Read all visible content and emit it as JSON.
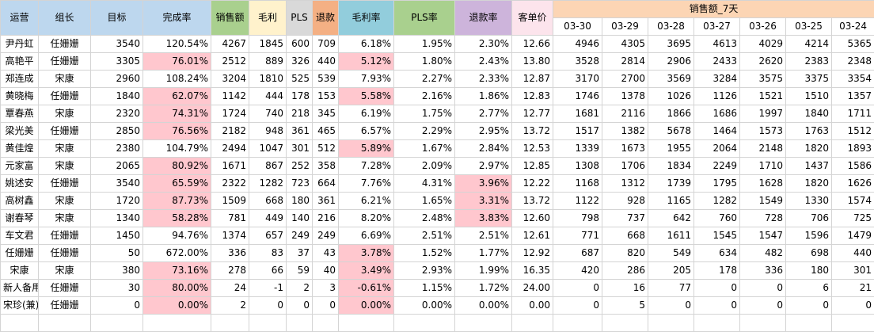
{
  "colors": {
    "yunying": "#bdd7ee",
    "zuzhang": "#bdd7ee",
    "mubiao": "#bdd7ee",
    "wanchenglv": "#bdd7ee",
    "xiaoshoue": "#a9d08e",
    "maoli": "#fff2cc",
    "pls": "#d9d9d9",
    "tuikuan": "#f4b084",
    "maolilv": "#92cddc",
    "plslv": "#a9d08e",
    "tuikuanlv": "#cdb4db",
    "kedanjia": "#fce4ec",
    "week": "#fcd5b4",
    "highlight": "#ffc7ce"
  },
  "header": {
    "columns": [
      "运营",
      "组长",
      "目标",
      "完成率",
      "销售额",
      "毛利",
      "PLS",
      "退款",
      "毛利率",
      "PLS率",
      "退款率",
      "客单价"
    ],
    "week_title": "销售额_7天",
    "dates": [
      "03-30",
      "03-29",
      "03-28",
      "03-27",
      "03-26",
      "03-25",
      "03-24"
    ]
  },
  "rows": [
    {
      "cells": [
        "尹丹虹",
        "任姗姗",
        "3540",
        "120.54%",
        "4267",
        "1845",
        "600",
        "709",
        "6.18%",
        "1.95%",
        "2.30%",
        "12.66"
      ],
      "days": [
        "4946",
        "4305",
        "3695",
        "4613",
        "4029",
        "4214",
        "5365"
      ],
      "hl": []
    },
    {
      "cells": [
        "高艳平",
        "任姗姗",
        "3305",
        "76.01%",
        "2512",
        "889",
        "326",
        "440",
        "5.12%",
        "1.80%",
        "2.43%",
        "13.80"
      ],
      "days": [
        "3528",
        "2814",
        "2906",
        "2433",
        "2620",
        "2383",
        "2348"
      ],
      "hl": [
        3,
        8
      ]
    },
    {
      "cells": [
        "郑连成",
        "宋康",
        "2960",
        "108.24%",
        "3204",
        "1810",
        "525",
        "539",
        "7.93%",
        "2.27%",
        "2.33%",
        "12.87"
      ],
      "days": [
        "3170",
        "2700",
        "3569",
        "3284",
        "3575",
        "3375",
        "3354"
      ],
      "hl": []
    },
    {
      "cells": [
        "黄晓梅",
        "任姗姗",
        "1840",
        "62.07%",
        "1142",
        "444",
        "178",
        "153",
        "5.58%",
        "2.16%",
        "1.86%",
        "12.83"
      ],
      "days": [
        "1746",
        "1378",
        "1026",
        "1126",
        "1521",
        "1510",
        "1357"
      ],
      "hl": [
        3,
        8
      ]
    },
    {
      "cells": [
        "覃春燕",
        "宋康",
        "2320",
        "74.31%",
        "1724",
        "740",
        "218",
        "345",
        "6.19%",
        "1.75%",
        "2.77%",
        "12.77"
      ],
      "days": [
        "1681",
        "2116",
        "1866",
        "1686",
        "1997",
        "1840",
        "1711"
      ],
      "hl": [
        3
      ]
    },
    {
      "cells": [
        "梁光美",
        "任姗姗",
        "2850",
        "76.56%",
        "2182",
        "948",
        "361",
        "465",
        "6.57%",
        "2.29%",
        "2.95%",
        "13.72"
      ],
      "days": [
        "1517",
        "1382",
        "5678",
        "1464",
        "1573",
        "1763",
        "1512"
      ],
      "hl": [
        3
      ]
    },
    {
      "cells": [
        "黄佳煌",
        "宋康",
        "2380",
        "104.79%",
        "2494",
        "1047",
        "301",
        "512",
        "5.89%",
        "1.67%",
        "2.84%",
        "12.53"
      ],
      "days": [
        "1339",
        "1673",
        "1955",
        "2064",
        "2148",
        "1820",
        "1893"
      ],
      "hl": [
        8
      ]
    },
    {
      "cells": [
        "元家富",
        "宋康",
        "2065",
        "80.92%",
        "1671",
        "867",
        "252",
        "358",
        "7.28%",
        "2.09%",
        "2.97%",
        "12.85"
      ],
      "days": [
        "1308",
        "1706",
        "1834",
        "2249",
        "1710",
        "1437",
        "1586"
      ],
      "hl": [
        3
      ]
    },
    {
      "cells": [
        "姚述安",
        "任姗姗",
        "3540",
        "65.59%",
        "2322",
        "1282",
        "723",
        "664",
        "7.76%",
        "4.31%",
        "3.96%",
        "12.22"
      ],
      "days": [
        "1168",
        "1312",
        "1739",
        "1795",
        "1628",
        "1820",
        "1626"
      ],
      "hl": [
        3,
        10
      ]
    },
    {
      "cells": [
        "高树鑫",
        "宋康",
        "1720",
        "87.73%",
        "1509",
        "668",
        "180",
        "361",
        "6.21%",
        "1.65%",
        "3.31%",
        "13.72"
      ],
      "days": [
        "1122",
        "928",
        "1165",
        "1282",
        "1549",
        "1330",
        "1574"
      ],
      "hl": [
        3,
        10
      ]
    },
    {
      "cells": [
        "谢春琴",
        "宋康",
        "1340",
        "58.28%",
        "781",
        "449",
        "140",
        "216",
        "8.20%",
        "2.48%",
        "3.83%",
        "12.60"
      ],
      "days": [
        "798",
        "737",
        "642",
        "760",
        "728",
        "706",
        "725"
      ],
      "hl": [
        3,
        10
      ]
    },
    {
      "cells": [
        "车文君",
        "任姗姗",
        "1450",
        "94.76%",
        "1374",
        "657",
        "249",
        "249",
        "6.69%",
        "2.51%",
        "2.51%",
        "12.61"
      ],
      "days": [
        "771",
        "668",
        "1611",
        "1545",
        "1547",
        "1596",
        "1479"
      ],
      "hl": []
    },
    {
      "cells": [
        "任姗姗",
        "任姗姗",
        "50",
        "672.00%",
        "336",
        "83",
        "37",
        "43",
        "3.78%",
        "1.52%",
        "1.77%",
        "12.92"
      ],
      "days": [
        "687",
        "820",
        "549",
        "634",
        "482",
        "698",
        "440"
      ],
      "hl": [
        8
      ]
    },
    {
      "cells": [
        "宋康",
        "宋康",
        "380",
        "73.16%",
        "278",
        "66",
        "59",
        "40",
        "3.49%",
        "2.93%",
        "1.99%",
        "16.35"
      ],
      "days": [
        "420",
        "286",
        "205",
        "178",
        "336",
        "180",
        "301"
      ],
      "hl": [
        3,
        8
      ]
    },
    {
      "cells": [
        "新人备用",
        "任姗姗",
        "30",
        "80.00%",
        "24",
        "-1",
        "2",
        "3",
        "-0.61%",
        "1.15%",
        "1.72%",
        "24.00"
      ],
      "days": [
        "0",
        "16",
        "77",
        "0",
        "0",
        "6",
        "21"
      ],
      "hl": [
        3,
        8
      ]
    },
    {
      "cells": [
        "宋珍(兼)",
        "任姗姗",
        "0",
        "0.00%",
        "2",
        "0",
        "0",
        "0",
        "0.00%",
        "0.00%",
        "0.00%",
        "0.00"
      ],
      "days": [
        "0",
        "5",
        "0",
        "0",
        "0",
        "0",
        "0"
      ],
      "hl": [
        3,
        8
      ]
    }
  ]
}
